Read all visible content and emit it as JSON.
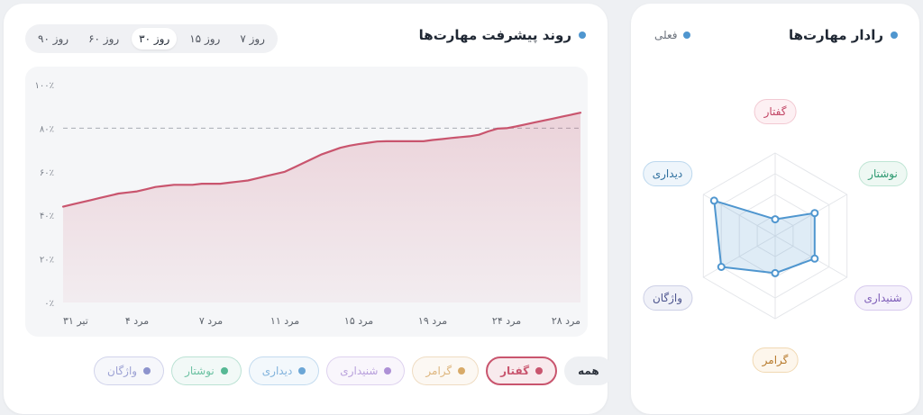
{
  "main": {
    "title": "روند پیشرفت مهارت‌ها",
    "range_tabs": [
      {
        "label": "۹۰ روز",
        "active": false
      },
      {
        "label": "۶۰ روز",
        "active": false
      },
      {
        "label": "۳۰ روز",
        "active": true
      },
      {
        "label": "۱۵ روز",
        "active": false
      },
      {
        "label": "۷ روز",
        "active": false
      }
    ]
  },
  "filters": [
    {
      "label": "واژگان",
      "color": "#8d93cd",
      "active": false
    },
    {
      "label": "نوشتار",
      "color": "#56b894",
      "active": false
    },
    {
      "label": "دیداری",
      "color": "#6ba6d6",
      "active": false
    },
    {
      "label": "شنیداری",
      "color": "#ad90d6",
      "active": false
    },
    {
      "label": "گرامر",
      "color": "#d8aa68",
      "active": false
    },
    {
      "label": "گفتار",
      "color": "#c9556e",
      "active": true
    },
    {
      "label": "همه",
      "color": "",
      "active": false
    }
  ],
  "radar": {
    "title": "رادار مهارت‌ها",
    "legend_label": "فعلی",
    "color": "#4f96cf",
    "skills": [
      {
        "label": "گفتار",
        "value": 0.2,
        "text_color": "#c24565",
        "bg": "#fdf0f3",
        "border": "#f2c9d2"
      },
      {
        "label": "نوشتار",
        "value": 0.55,
        "text_color": "#2f9a72",
        "bg": "#eef8f3",
        "border": "#bfe5d4"
      },
      {
        "label": "شنیداری",
        "value": 0.55,
        "text_color": "#7d5cb8",
        "bg": "#f4f0fb",
        "border": "#d7caee"
      },
      {
        "label": "گرامر",
        "value": 0.45,
        "text_color": "#b77a2c",
        "bg": "#fdf6ec",
        "border": "#f1d9b3"
      },
      {
        "label": "واژگان",
        "value": 0.75,
        "text_color": "#4e568f",
        "bg": "#f0f1f8",
        "border": "#cdd0e6"
      },
      {
        "label": "دیداری",
        "value": 0.85,
        "text_color": "#2e6f9e",
        "bg": "#eef5fb",
        "border": "#bcd8ee"
      }
    ]
  },
  "chart_data": {
    "type": "area",
    "title": "روند پیشرفت مهارت‌ها",
    "series": [
      {
        "name": "گفتار",
        "color": "#c9556e",
        "values": [
          44,
          45,
          46,
          47,
          48,
          49,
          50,
          50.5,
          51,
          52,
          53,
          53.5,
          54,
          54,
          54,
          54.5,
          54.5,
          54.5,
          55,
          55.5,
          56,
          57,
          58,
          59,
          60,
          62,
          64,
          66,
          68,
          69.5,
          71,
          72,
          72.7,
          73.3,
          73.9,
          74,
          74,
          74,
          74,
          74,
          74.6,
          75,
          75.5,
          75.9,
          76.3,
          77,
          78.5,
          79.8,
          80,
          80.8,
          81.7,
          82.6,
          83.5,
          84.4,
          85.3,
          86.2,
          87.1
        ]
      }
    ],
    "x_ticks": [
      "تیر ۳۱",
      "مرد ۴",
      "مرد ۷",
      "مرد ۱۱",
      "مرد ۱۵",
      "مرد ۱۹",
      "مرد ۲۴",
      "مرد ۲۸"
    ],
    "y_ticks": [
      "۰٪",
      "۲۰٪",
      "۴۰٪",
      "۶۰٪",
      "۸۰٪",
      "۱۰۰٪"
    ],
    "ylim": [
      0,
      100
    ],
    "target_line": 80,
    "grid": "horizontal",
    "fill": "gradient"
  }
}
